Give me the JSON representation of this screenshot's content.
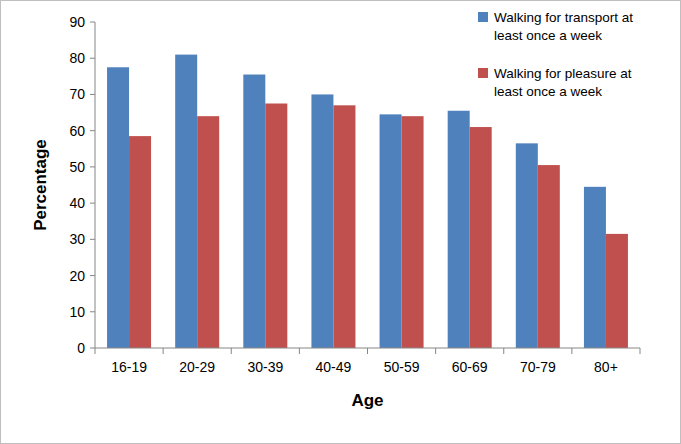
{
  "chart_data": {
    "type": "bar",
    "x_label": "Age",
    "y_label": "Percentage",
    "categories": [
      "16-19",
      "20-29",
      "30-39",
      "40-49",
      "50-59",
      "60-69",
      "70-79",
      "80+"
    ],
    "series": [
      {
        "name": "Walking for transport at least once a week",
        "color": "#4f81bd",
        "values": [
          77.5,
          81,
          75.5,
          70,
          64.5,
          65.5,
          56.5,
          44.5
        ]
      },
      {
        "name": "Walking for pleasure at least once a week",
        "color": "#c0504d",
        "values": [
          58.5,
          64,
          67.5,
          67,
          64,
          61,
          50.5,
          31.5
        ]
      }
    ],
    "ylim": [
      0,
      90
    ],
    "yticks": [
      0,
      10,
      20,
      30,
      40,
      50,
      60,
      70,
      80,
      90
    ],
    "grid": false,
    "legend": "top-right"
  }
}
